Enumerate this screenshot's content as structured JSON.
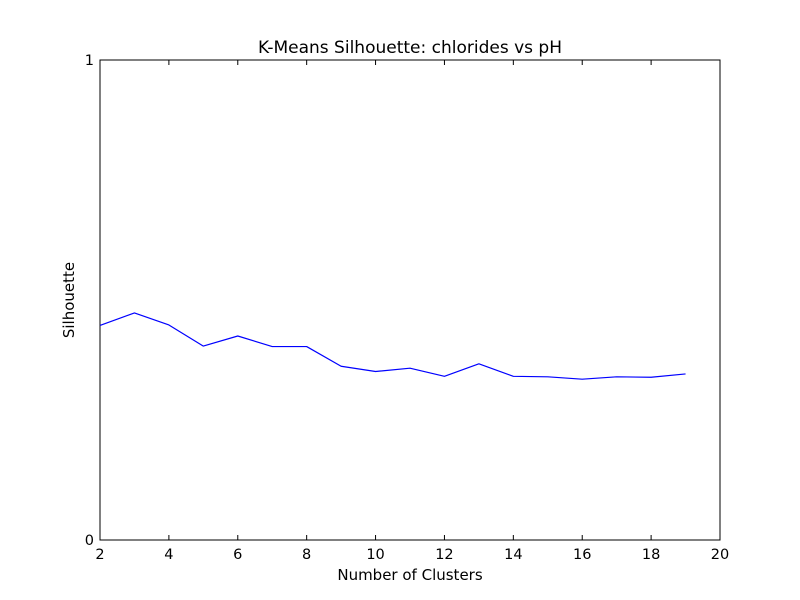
{
  "chart_data": {
    "type": "line",
    "title": "K-Means Silhouette: chlorides vs pH",
    "xlabel": "Number of Clusters",
    "ylabel": "Silhouette",
    "xlim": [
      2,
      20
    ],
    "ylim": [
      0,
      1
    ],
    "x_ticks": [
      2,
      4,
      6,
      8,
      10,
      12,
      14,
      16,
      18,
      20
    ],
    "x_tick_labels": [
      "2",
      "4",
      "6",
      "8",
      "10",
      "12",
      "14",
      "16",
      "18",
      "20"
    ],
    "y_ticks": [
      0,
      1
    ],
    "y_tick_labels": [
      "0",
      "1"
    ],
    "grid": false,
    "legend": null,
    "series": [
      {
        "color": "#0000ff",
        "x": [
          2,
          3,
          4,
          5,
          6,
          7,
          8,
          9,
          10,
          11,
          12,
          13,
          14,
          15,
          16,
          17,
          18,
          19
        ],
        "values": [
          0.447,
          0.473,
          0.448,
          0.404,
          0.425,
          0.403,
          0.403,
          0.362,
          0.351,
          0.358,
          0.341,
          0.367,
          0.341,
          0.34,
          0.335,
          0.34,
          0.339,
          0.346
        ]
      }
    ]
  }
}
